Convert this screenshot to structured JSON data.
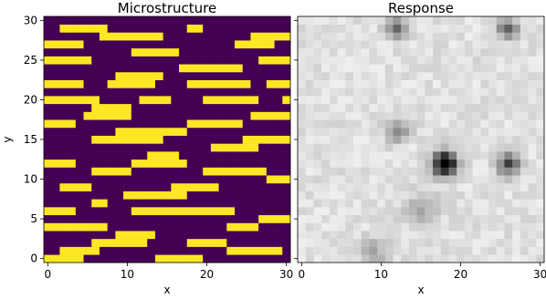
{
  "chart_data": [
    {
      "type": "heatmap",
      "title": "Microstructure",
      "xlabel": "x",
      "ylabel": "y",
      "xlim": [
        -0.5,
        30.5
      ],
      "ylim": [
        -0.5,
        30.5
      ],
      "xticks": [
        0,
        10,
        20,
        30
      ],
      "yticks": [
        0,
        5,
        10,
        15,
        20,
        25,
        30
      ],
      "colormap": "viridis",
      "colors": {
        "phase0": "#440154",
        "phase1": "#fde725"
      },
      "grid": false,
      "rows": [
        "0000000000000000000000000000000",
        "0011111100000000001100000000000",
        "0000000111111110000000000011111",
        "1111100000000000000000001111100",
        "0000000000011111100000000000000",
        "1111110000000000000000000001111",
        "0000000000000000011111111000000",
        "0000000001111110000000000000000",
        "1111100011111100001111111100111",
        "0000000000000000000000000000000",
        "1111111000001111000011111110001",
        "0000001111100000000000000000000",
        "0000011111100000000000000011111",
        "1111000000000000001111111000000",
        "0000000001111111110000000000000",
        "0000001111111110000000000111111",
        "0000000000000000000001111110000",
        "0000000000000111100000000000000",
        "1111000000011111110000000000000",
        "0000001111100000000011111111000",
        "0000000000000000000000000000111",
        "0011110000000000111111000000000",
        "0000000000111111110000000000000",
        "0000001100000000000000000000000",
        "1111000000011111111111110000000",
        "0000000000000000000000000001111",
        "1111111100000000000000011110000",
        "0000000001111100000000000000000",
        "0000001111111000001111100000000",
        "0011111000000000000000011111110",
        "1111100000000011111100000000000"
      ]
    },
    {
      "type": "heatmap",
      "title": "Response",
      "xlabel": "x",
      "ylabel": "",
      "xlim": [
        -0.5,
        30.5
      ],
      "ylim": [
        -0.5,
        30.5
      ],
      "xticks": [
        0,
        10,
        20,
        30
      ],
      "yticks": [
        0,
        5,
        10,
        15,
        20,
        25,
        30
      ],
      "colormap": "greys",
      "grid": false,
      "baseline": 0.12,
      "hotspots": [
        {
          "x": 18,
          "y": 12,
          "value": 1.0,
          "spread": 1.1
        },
        {
          "x": 26,
          "y": 12,
          "value": 0.6,
          "spread": 1.0
        },
        {
          "x": 12,
          "y": 29,
          "value": 0.45,
          "spread": 0.9
        },
        {
          "x": 26,
          "y": 29,
          "value": 0.5,
          "spread": 0.9
        },
        {
          "x": 12,
          "y": 16,
          "value": 0.35,
          "spread": 1.0
        },
        {
          "x": 9,
          "y": 1,
          "value": 0.25,
          "spread": 1.2
        },
        {
          "x": 15,
          "y": 6,
          "value": 0.2,
          "spread": 1.5
        }
      ]
    }
  ]
}
